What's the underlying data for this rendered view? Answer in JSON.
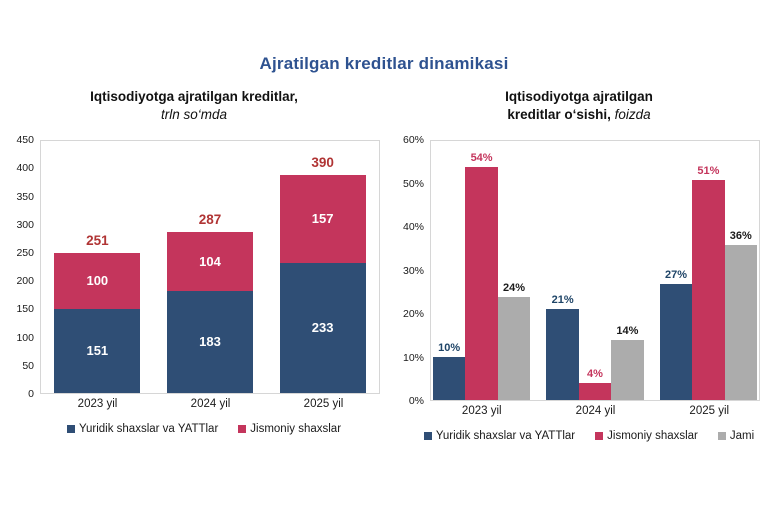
{
  "main": {
    "title": "Ajratilgan kreditlar dinamikasi"
  },
  "colors": {
    "title": "#2E5290",
    "navy": "#2F4E75",
    "crimson": "#C4355C",
    "gray": "#ACACAC",
    "total_red": "#B03434",
    "plot_border": "#D6D6D6"
  },
  "chart_data": [
    {
      "type": "bar",
      "subtype": "stacked-bar",
      "title_line1": "Iqtisodiyotga ajratilgan kreditlar,",
      "title_line2_bold": "",
      "title_line2_italic": "trln so‘mda",
      "categories": [
        "2023 yil",
        "2024 yil",
        "2025 yil"
      ],
      "series": [
        {
          "name": "Yuridik shaxslar va YATTlar",
          "color": "#2F4E75",
          "values": [
            151,
            183,
            233
          ],
          "labels": [
            "151",
            "183",
            "233"
          ],
          "label_color": "#FFFFFF"
        },
        {
          "name": "Jismoniy shaxslar",
          "color": "#C4355C",
          "values": [
            100,
            104,
            157
          ],
          "labels": [
            "100",
            "104",
            "157"
          ],
          "label_color": "#FFFFFF"
        }
      ],
      "totals": [
        251,
        287,
        390
      ],
      "total_labels": [
        "251",
        "287",
        "390"
      ],
      "total_color": "#B03434",
      "ylim": [
        0,
        450
      ],
      "ymax": 450,
      "y_ticks": [
        "450",
        "400",
        "350",
        "300",
        "250",
        "200",
        "150",
        "100",
        "50",
        "0"
      ],
      "grid": "off",
      "legend_position": "bottom"
    },
    {
      "type": "bar",
      "subtype": "grouped-bar",
      "title_line1": "Iqtisodiyotga ajratilgan",
      "title_line2_bold": "kreditlar o‘sishi,",
      "title_line2_italic": "foizda",
      "categories": [
        "2023 yil",
        "2024 yil",
        "2025 yil"
      ],
      "series": [
        {
          "name": "Yuridik shaxslar va YATTlar",
          "color": "#2F4E75",
          "values": [
            10,
            21,
            27
          ],
          "labels": [
            "10%",
            "21%",
            "27%"
          ],
          "label_color": "#1E4467"
        },
        {
          "name": "Jismoniy shaxslar",
          "color": "#C4355C",
          "values": [
            54,
            4,
            51
          ],
          "labels": [
            "54%",
            "4%",
            "51%"
          ],
          "label_color": "#C4355C"
        },
        {
          "name": "Jami",
          "color": "#ACACAC",
          "values": [
            24,
            14,
            36
          ],
          "labels": [
            "24%",
            "14%",
            "36%"
          ],
          "label_color": "#1A1A1A"
        }
      ],
      "ylim": [
        0,
        60
      ],
      "ymax": 60,
      "y_ticks": [
        "60%",
        "50%",
        "40%",
        "30%",
        "20%",
        "10%",
        "0%"
      ],
      "grid": "off",
      "legend_position": "bottom"
    }
  ]
}
